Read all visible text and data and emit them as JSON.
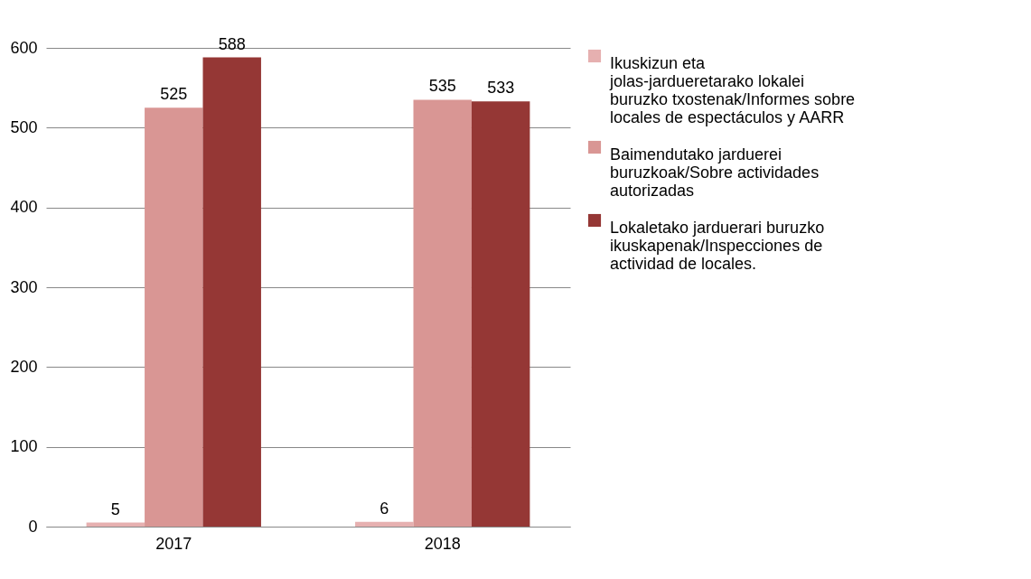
{
  "chart_data": {
    "type": "bar",
    "categories": [
      "2017",
      "2018"
    ],
    "series": [
      {
        "name": "Ikuskizun eta jolas-jardueretarako lokalei buruzko txostenak/Informes sobre locales de espectáculos y AARR",
        "color": "#e6b0b0",
        "values": [
          5,
          6
        ]
      },
      {
        "name": "Baimendutako jarduerei buruzkoak/Sobre actividades autorizadas",
        "color": "#d99694",
        "values": [
          525,
          535
        ]
      },
      {
        "name": "Lokaletako jarduerari buruzko ikuskapenak/Inspecciones de actividad de locales.",
        "color": "#953735",
        "values": [
          588,
          533
        ]
      }
    ],
    "ylim": [
      0,
      600
    ],
    "yticks": [
      0,
      100,
      200,
      300,
      400,
      500,
      600
    ],
    "grid": "y",
    "legend": "right",
    "data_labels": true
  }
}
